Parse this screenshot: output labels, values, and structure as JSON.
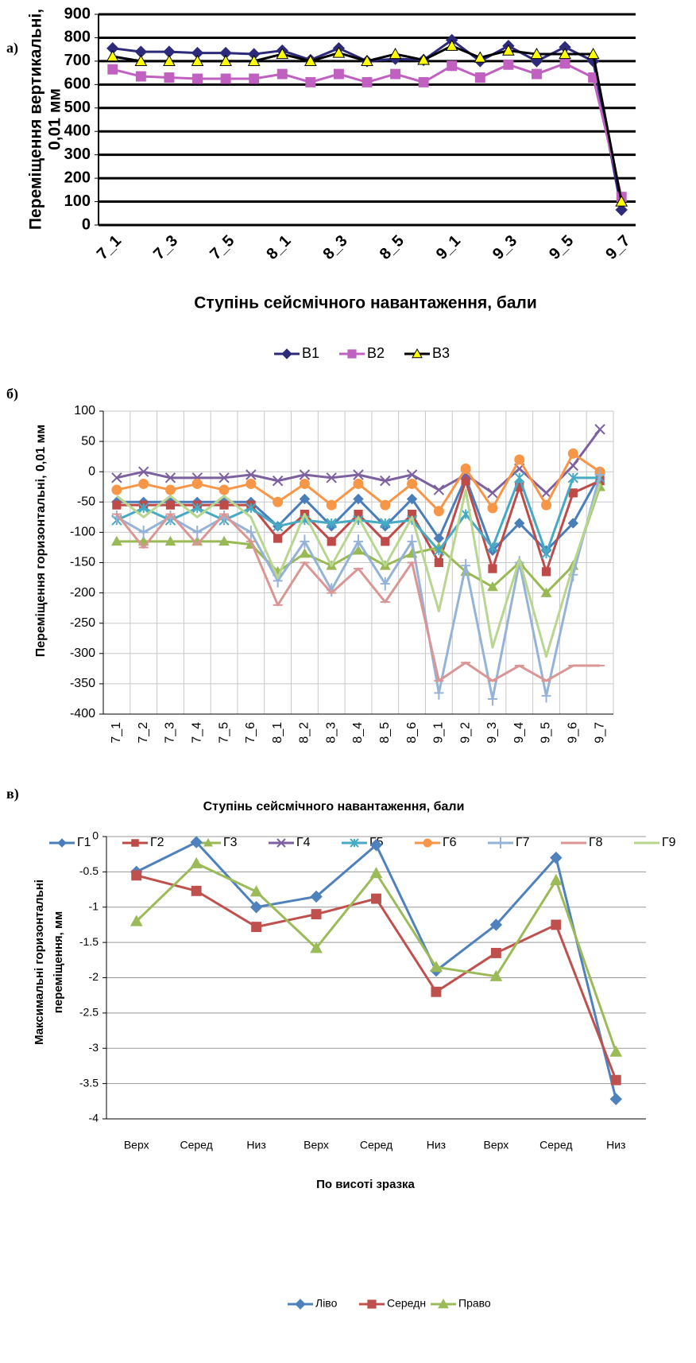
{
  "chart_data": [
    {
      "type": "line",
      "panel": "а)",
      "ylabel": [
        "Переміщення вертикальні,",
        "0,01 мм"
      ],
      "xlabel": "Ступінь сейсмічного навантаження, бали",
      "categories": [
        "7_1",
        null,
        "7_3",
        null,
        "7_5",
        null,
        "8_1",
        null,
        "8_3",
        null,
        "8_5",
        null,
        "9_1",
        null,
        "9_3",
        null,
        "9_5",
        null,
        "9_7"
      ],
      "ylim": [
        0,
        900
      ],
      "yticks": [
        0,
        100,
        200,
        300,
        400,
        500,
        600,
        700,
        800,
        900
      ],
      "grid": true,
      "series": [
        {
          "name": "В1",
          "color": "#2e2a7a",
          "marker": "diamond",
          "values": [
            755,
            740,
            740,
            735,
            735,
            730,
            745,
            705,
            755,
            700,
            710,
            705,
            790,
            700,
            765,
            700,
            760,
            700,
            65
          ]
        },
        {
          "name": "В2",
          "color": "#c060c0",
          "marker": "square",
          "values": [
            665,
            635,
            630,
            625,
            625,
            625,
            645,
            610,
            645,
            610,
            645,
            610,
            680,
            630,
            685,
            645,
            690,
            630,
            120
          ]
        },
        {
          "name": "В3",
          "color": "#000000",
          "marker": "triangle",
          "marker_fill": "#ffff00",
          "values": [
            720,
            700,
            700,
            700,
            700,
            700,
            730,
            700,
            735,
            700,
            730,
            705,
            765,
            715,
            745,
            730,
            730,
            730,
            100
          ]
        }
      ]
    },
    {
      "type": "line",
      "panel": "б)",
      "ylabel": [
        "Переміщення горизонтальні, 0,01 мм"
      ],
      "xlabel": "Ступінь сейсмічного навантаження, бали",
      "categories": [
        "7_1",
        "7_2",
        "7_3",
        "7_4",
        "7_5",
        "7_6",
        "8_1",
        "8_2",
        "8_3",
        "8_4",
        "8_5",
        "8_6",
        "9_1",
        "9_2",
        "9_3",
        "9_4",
        "9_5",
        "9_6",
        "9_7"
      ],
      "ylim": [
        -400,
        100
      ],
      "yticks": [
        -400,
        -350,
        -300,
        -250,
        -200,
        -150,
        -100,
        -50,
        0,
        50,
        100
      ],
      "grid": true,
      "series": [
        {
          "name": "Г1",
          "color": "#4a7ebb",
          "marker": "diamond",
          "values": [
            -50,
            -50,
            -50,
            -50,
            -50,
            -50,
            -90,
            -45,
            -90,
            -45,
            -90,
            -45,
            -110,
            -10,
            -130,
            -85,
            -130,
            -85,
            -5
          ]
        },
        {
          "name": "Г2",
          "color": "#be4b48",
          "marker": "square",
          "values": [
            -55,
            -55,
            -55,
            -55,
            -55,
            -55,
            -110,
            -70,
            -115,
            -70,
            -115,
            -70,
            -150,
            -15,
            -160,
            -25,
            -165,
            -35,
            -15
          ]
        },
        {
          "name": "Г3",
          "color": "#98b954",
          "marker": "triangle",
          "values": [
            -115,
            -115,
            -115,
            -115,
            -115,
            -120,
            -165,
            -135,
            -155,
            -130,
            -155,
            -135,
            -125,
            -165,
            -190,
            -150,
            -200,
            -155,
            -25
          ]
        },
        {
          "name": "Г4",
          "color": "#7d60a0",
          "marker": "x",
          "values": [
            -10,
            0,
            -10,
            -10,
            -10,
            -5,
            -15,
            -5,
            -10,
            -5,
            -15,
            -5,
            -30,
            -5,
            -35,
            5,
            -35,
            10,
            70
          ]
        },
        {
          "name": "Г5",
          "color": "#46aac5",
          "marker": "star",
          "values": [
            -80,
            -60,
            -80,
            -60,
            -80,
            -60,
            -90,
            -80,
            -85,
            -80,
            -85,
            -80,
            -130,
            -70,
            -125,
            -10,
            -135,
            -10,
            -10
          ]
        },
        {
          "name": "Г6",
          "color": "#f79646",
          "marker": "circle",
          "values": [
            -30,
            -20,
            -30,
            -20,
            -30,
            -20,
            -50,
            -20,
            -55,
            -20,
            -55,
            -20,
            -65,
            5,
            -60,
            20,
            -55,
            30,
            0
          ]
        },
        {
          "name": "Г7",
          "color": "#95b3d7",
          "marker": "plus",
          "values": [
            -75,
            -100,
            -75,
            -100,
            -75,
            -100,
            -180,
            -115,
            -195,
            -115,
            -185,
            -115,
            -365,
            -155,
            -375,
            -150,
            -370,
            -170,
            -5
          ]
        },
        {
          "name": "Г8",
          "color": "#d99694",
          "marker": "dash",
          "values": [
            -70,
            -125,
            -70,
            -120,
            -70,
            -115,
            -220,
            -150,
            -200,
            -160,
            -215,
            -150,
            -345,
            -315,
            -345,
            -320,
            -345,
            -320,
            -320
          ]
        },
        {
          "name": "Г9",
          "color": "#b8d68f",
          "marker": "none",
          "values": [
            -40,
            -75,
            -40,
            -75,
            -40,
            -75,
            -175,
            -70,
            -155,
            -75,
            -155,
            -75,
            -230,
            -30,
            -290,
            -145,
            -305,
            -155,
            -20
          ]
        }
      ]
    },
    {
      "type": "line",
      "panel": "в)",
      "ylabel": [
        "Максимальні горизонтальні",
        "переміщення, мм"
      ],
      "xlabel": "По висоті зразка",
      "categories": [
        "Верх",
        "Серед",
        "Низ",
        "Верх",
        "Серед",
        "Низ",
        "Верх",
        "Серед",
        "Низ"
      ],
      "ylim": [
        -4,
        0
      ],
      "yticks": [
        -4,
        -3.5,
        -3,
        -2.5,
        -2,
        -1.5,
        -1,
        -0.5,
        0
      ],
      "grid": true,
      "series": [
        {
          "name": "Ліво",
          "color": "#4f81bd",
          "marker": "diamond",
          "values": [
            -0.5,
            -0.08,
            -1.0,
            -0.85,
            -0.12,
            -1.9,
            -1.25,
            -0.3,
            -3.72
          ]
        },
        {
          "name": "Середн",
          "color": "#c0504d",
          "marker": "square",
          "values": [
            -0.55,
            -0.77,
            -1.28,
            -1.1,
            -0.88,
            -2.2,
            -1.65,
            -1.25,
            -3.45
          ]
        },
        {
          "name": "Право",
          "color": "#9bbb59",
          "marker": "triangle",
          "values": [
            -1.2,
            -0.38,
            -0.78,
            -1.58,
            -0.52,
            -1.85,
            -1.98,
            -0.62,
            -3.05
          ]
        }
      ]
    }
  ]
}
